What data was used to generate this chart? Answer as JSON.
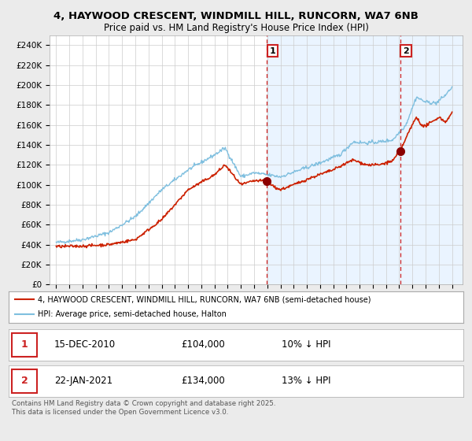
{
  "title_line1": "4, HAYWOOD CRESCENT, WINDMILL HILL, RUNCORN, WA7 6NB",
  "title_line2": "Price paid vs. HM Land Registry's House Price Index (HPI)",
  "ylabel_ticks": [
    "£0",
    "£20K",
    "£40K",
    "£60K",
    "£80K",
    "£100K",
    "£120K",
    "£140K",
    "£160K",
    "£180K",
    "£200K",
    "£220K",
    "£240K"
  ],
  "ytick_values": [
    0,
    20000,
    40000,
    60000,
    80000,
    100000,
    120000,
    140000,
    160000,
    180000,
    200000,
    220000,
    240000
  ],
  "ylim": [
    0,
    250000
  ],
  "hpi_color": "#7fbfdf",
  "price_color": "#cc2200",
  "dot_color": "#8b0000",
  "sale1_date_num": 2010.96,
  "sale1_price": 104000,
  "sale1_label": "1",
  "sale2_date_num": 2021.07,
  "sale2_price": 134000,
  "sale2_label": "2",
  "vline_color": "#cc2222",
  "shade_color": "#ddeeff",
  "annotation_box_color": "#cc2222",
  "legend_label_price": "4, HAYWOOD CRESCENT, WINDMILL HILL, RUNCORN, WA7 6NB (semi-detached house)",
  "legend_label_hpi": "HPI: Average price, semi-detached house, Halton",
  "footer_text": "Contains HM Land Registry data © Crown copyright and database right 2025.\nThis data is licensed under the Open Government Licence v3.0.",
  "table_row1": [
    "1",
    "15-DEC-2010",
    "£104,000",
    "10% ↓ HPI"
  ],
  "table_row2": [
    "2",
    "22-JAN-2021",
    "£134,000",
    "13% ↓ HPI"
  ],
  "background_color": "#ebebeb",
  "plot_bg_color": "#ffffff",
  "grid_color": "#cccccc",
  "xlim_left": 1994.5,
  "xlim_right": 2025.8
}
